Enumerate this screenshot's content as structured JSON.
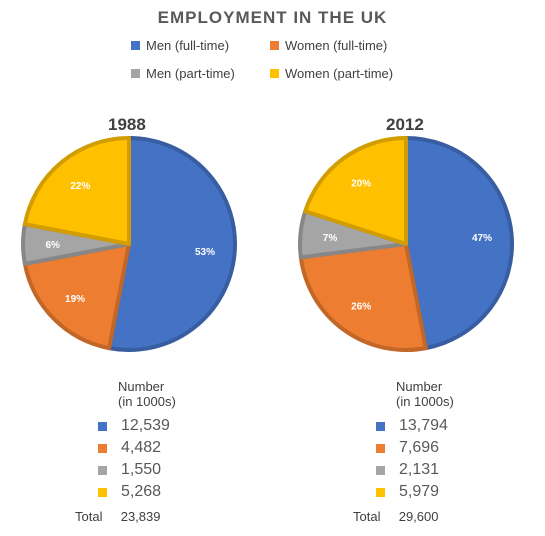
{
  "chart_data": [
    {
      "type": "pie",
      "title": "EMPLOYMENT IN THE UK",
      "year": "1988",
      "categories": [
        "Men (full-time)",
        "Women (full-time)",
        "Men (part-time)",
        "Women (part-time)"
      ],
      "values": [
        53,
        19,
        6,
        22
      ],
      "value_labels": [
        "53%",
        "19%",
        "6%",
        "22%"
      ],
      "numbers": [
        "12,539",
        "4,482",
        "1,550",
        "5,268"
      ],
      "total": "23,839"
    },
    {
      "type": "pie",
      "title": "EMPLOYMENT IN THE UK",
      "year": "2012",
      "categories": [
        "Men (full-time)",
        "Women (full-time)",
        "Men (part-time)",
        "Women (part-time)"
      ],
      "values": [
        47,
        26,
        7,
        20
      ],
      "value_labels": [
        "47%",
        "26%",
        "7%",
        "20%"
      ],
      "numbers": [
        "13,794",
        "7,696",
        "2,131",
        "5,979"
      ],
      "total": "29,600"
    }
  ],
  "title": "EMPLOYMENT IN THE UK",
  "legend": [
    {
      "label": "Men (full-time)",
      "color": "#4472C4"
    },
    {
      "label": "Women (full-time)",
      "color": "#ED7D31"
    },
    {
      "label": "Men (part-time)",
      "color": "#A5A5A5"
    },
    {
      "label": "Women (part-time)",
      "color": "#FFC000"
    }
  ],
  "colors": {
    "men_full": "#4472C4",
    "women_full": "#ED7D31",
    "men_part": "#A5A5A5",
    "women_part": "#FFC000"
  },
  "table": {
    "header_line1": "Number",
    "header_line2": "(in 1000s)",
    "total_label": "Total"
  }
}
